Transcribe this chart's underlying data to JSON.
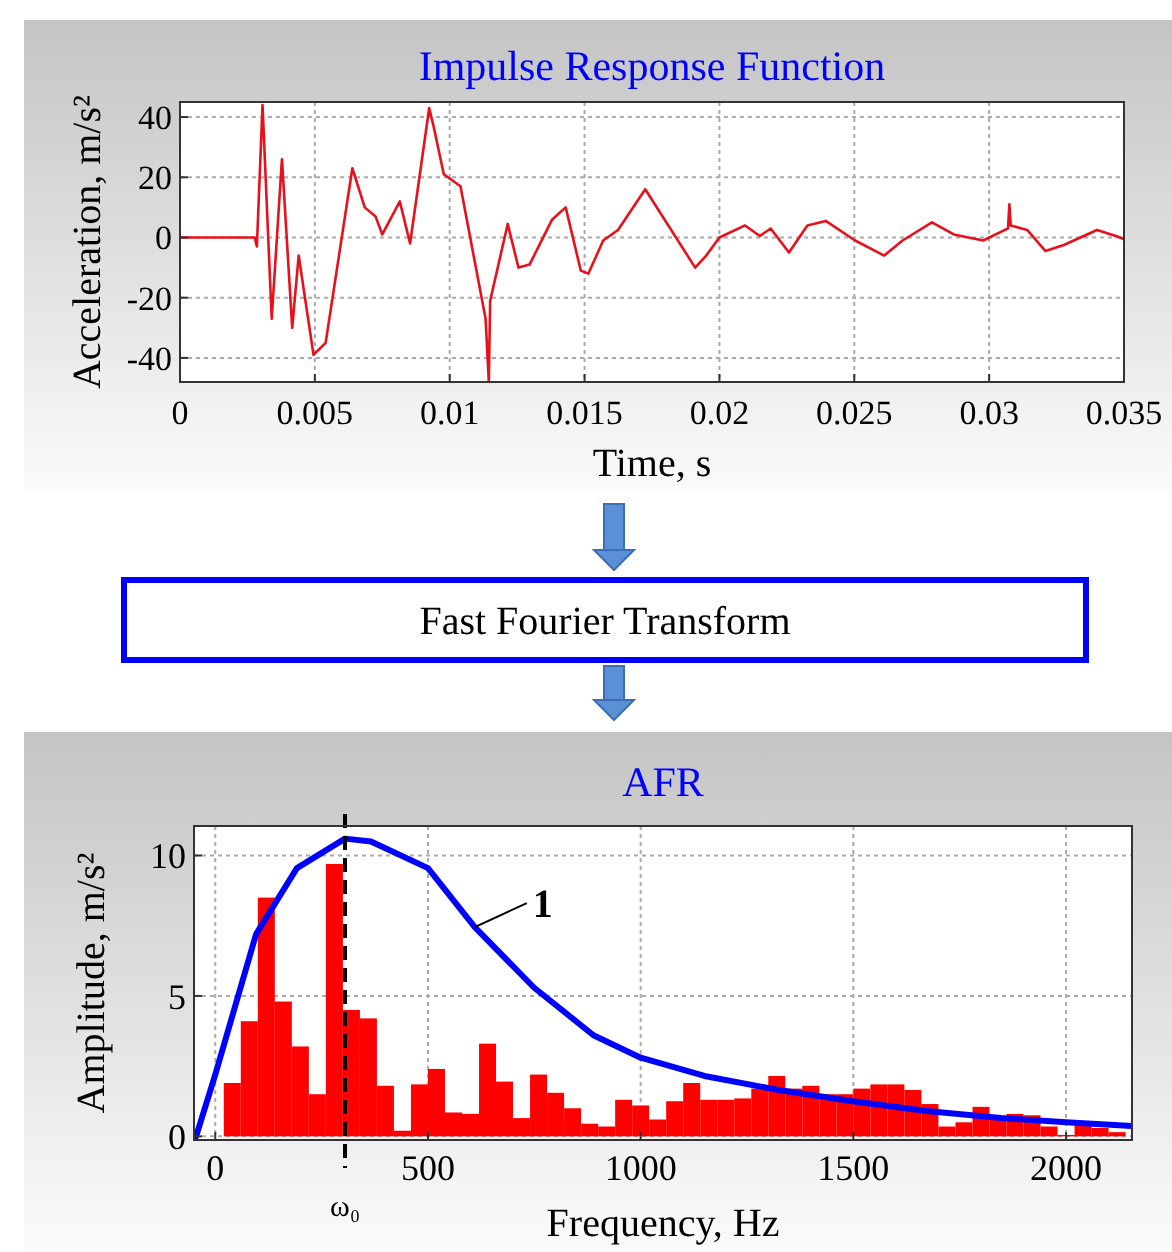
{
  "chart_data": [
    {
      "type": "line",
      "title": "Impulse Response Function",
      "xlabel": "Time, s",
      "ylabel": "Acceleration, m/s²",
      "xlim": [
        0,
        0.035
      ],
      "ylim": [
        -48,
        45
      ],
      "xticks": [
        0,
        0.005,
        0.01,
        0.015,
        0.02,
        0.025,
        0.03,
        0.035
      ],
      "yticks": [
        -40,
        -20,
        0,
        20,
        40
      ],
      "grid": true,
      "series": [
        {
          "color": "#e8101a",
          "x": [
            0,
            0.00277,
            0.00285,
            0.00306,
            0.0034,
            0.00378,
            0.00416,
            0.0044,
            0.00495,
            0.0054,
            0.00639,
            0.00685,
            0.00725,
            0.0075,
            0.00815,
            0.00853,
            0.00924,
            0.0094,
            0.00978,
            0.0104,
            0.01133,
            0.01145,
            0.0115,
            0.01215,
            0.01255,
            0.01296,
            0.0138,
            0.0143,
            0.01486,
            0.01514,
            0.01569,
            0.01624,
            0.01725,
            0.0191,
            0.01951,
            0.02,
            0.02095,
            0.0215,
            0.0219,
            0.02258,
            0.02326,
            0.02394,
            0.02503,
            0.02611,
            0.02679,
            0.02788,
            0.02869,
            0.02978,
            0.0307,
            0.03075,
            0.0308,
            0.03141,
            0.03209,
            0.03277,
            0.034,
            0.0347,
            0.035
          ],
          "values": [
            0,
            0,
            -3,
            44,
            -27,
            26,
            -30,
            -6,
            -39,
            -35,
            23,
            10,
            7,
            1,
            12,
            -2,
            43,
            37,
            21,
            17,
            -27,
            -48,
            -21,
            4.5,
            -10,
            -9,
            6,
            10,
            -11,
            -12,
            -1,
            2.5,
            16,
            -10,
            -6,
            0,
            4,
            0.5,
            3,
            -5,
            4,
            5.5,
            -1,
            -6,
            -1,
            5,
            1,
            -1,
            3,
            11,
            4,
            2.5,
            -4.5,
            -2.5,
            2.5,
            0.5,
            -0.5
          ]
        }
      ]
    },
    {
      "type": "other",
      "annotations": [
        "Fast Fourier Transform"
      ]
    },
    {
      "type": "histogram",
      "title": "AFR",
      "xlabel": "Frequency, Hz",
      "ylabel": "Amplitude, m/s²",
      "xlim": [
        -50,
        2155
      ],
      "ylim": [
        -0.13,
        11.05
      ],
      "xticks": [
        0,
        500,
        1000,
        1500,
        2000
      ],
      "yticks": [
        0,
        5,
        10
      ],
      "grid": true,
      "annotations": [
        {
          "text": "1",
          "x": 610,
          "y": 7.45
        }
      ],
      "ref_lines": [
        {
          "axis": "x",
          "value": 305,
          "label": "ω₀",
          "color": "#000000",
          "line_style": "dashed"
        }
      ],
      "series": [
        {
          "type": "histogram",
          "color": "#ff0000",
          "bins": [
            20,
            60,
            100,
            140,
            180,
            220,
            260,
            300,
            340,
            380,
            420,
            460,
            500,
            540,
            580,
            620,
            660,
            700,
            740,
            780,
            820,
            860,
            900,
            940,
            980,
            1020,
            1060,
            1100,
            1140,
            1180,
            1220,
            1260,
            1300,
            1340,
            1380,
            1420,
            1460,
            1500,
            1540,
            1580,
            1620,
            1660,
            1700,
            1740,
            1780,
            1820,
            1860,
            1900,
            1940,
            1980,
            2020,
            2060,
            2100,
            2140
          ],
          "values": [
            1.9,
            4.1,
            8.5,
            4.8,
            3.2,
            1.5,
            9.7,
            4.5,
            4.2,
            1.8,
            0.2,
            1.85,
            2.4,
            0.85,
            0.8,
            3.3,
            1.95,
            0.65,
            2.2,
            1.55,
            1.0,
            0.45,
            0.35,
            1.3,
            1.1,
            0.6,
            1.25,
            1.9,
            1.3,
            1.3,
            1.35,
            1.7,
            2.15,
            1.7,
            1.8,
            1.5,
            1.5,
            1.7,
            1.85,
            1.85,
            1.65,
            1.15,
            0.35,
            0.5,
            1.05,
            0.65,
            0.8,
            0.75,
            0.35,
            0.05,
            0.4,
            0.3,
            0.15
          ]
        },
        {
          "type": "line",
          "color": "#0000ff",
          "x": [
            -45,
            0,
            96,
            192,
            305,
            366,
            500,
            610,
            749,
            889,
            1000,
            1150,
            1324,
            1498,
            1672,
            1847,
            2000,
            2155
          ],
          "values": [
            0,
            2.2,
            7.2,
            9.55,
            10.6,
            10.5,
            9.55,
            7.45,
            5.3,
            3.6,
            2.8,
            2.15,
            1.65,
            1.25,
            0.9,
            0.65,
            0.5,
            0.37
          ]
        }
      ]
    }
  ]
}
